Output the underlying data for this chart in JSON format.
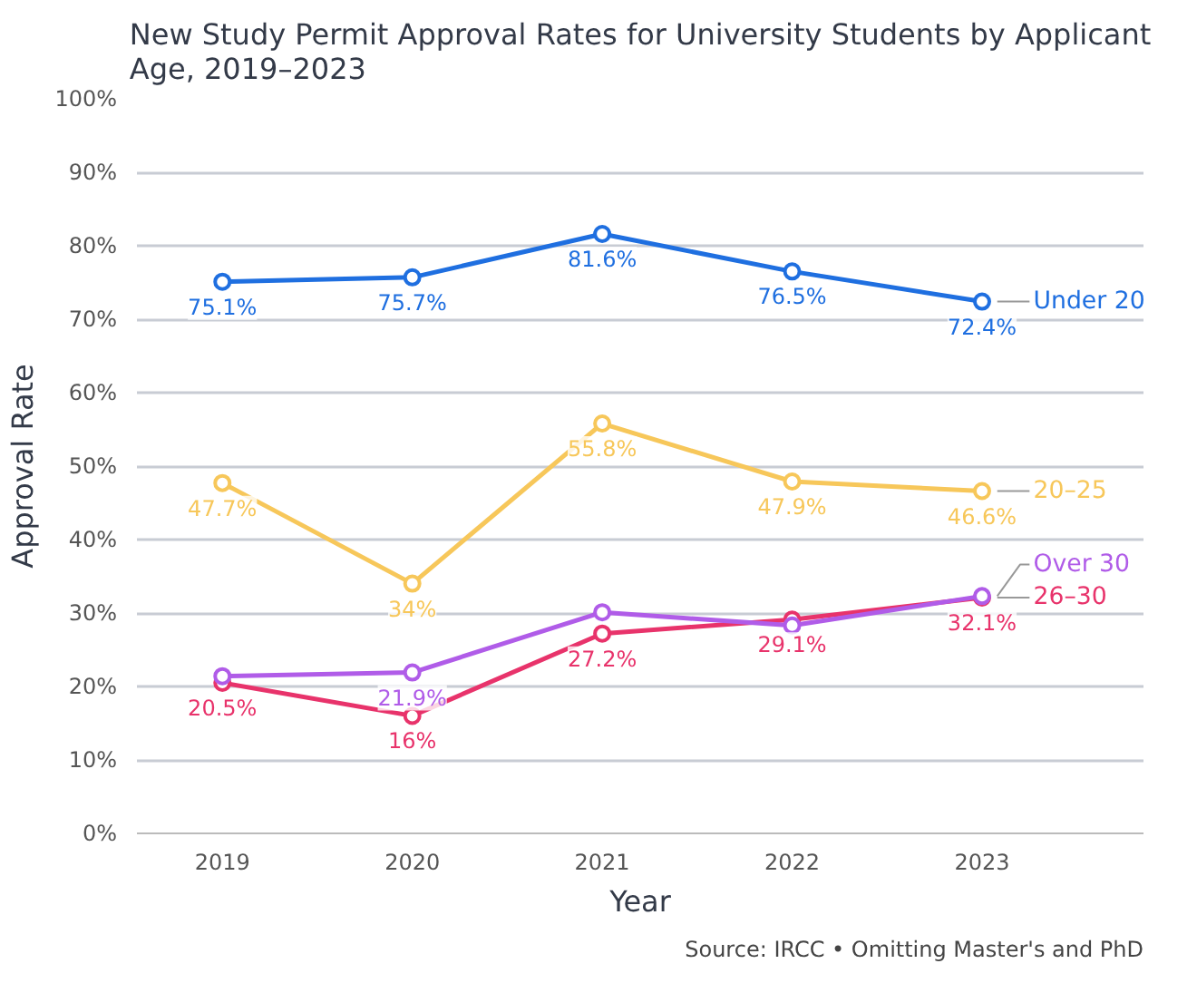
{
  "chart_data": {
    "type": "line",
    "title": "New Study Permit Approval Rates for University Students by Applicant\nAge, 2019–2023",
    "xlabel": "Year",
    "ylabel": "Approval Rate",
    "x": [
      2019,
      2020,
      2021,
      2022,
      2023
    ],
    "xlim": [
      2018.55,
      2023.85
    ],
    "xticks": [
      2019,
      2020,
      2021,
      2022,
      2023
    ],
    "ylim": [
      0,
      100
    ],
    "yticks": [
      {
        "value": 0,
        "label": "0%"
      },
      {
        "value": 10,
        "label": "10%"
      },
      {
        "value": 20,
        "label": "20%"
      },
      {
        "value": 30,
        "label": "30%"
      },
      {
        "value": 40,
        "label": "40%"
      },
      {
        "value": 50,
        "label": "50%"
      },
      {
        "value": 60,
        "label": "60%"
      },
      {
        "value": 70,
        "label": "70%"
      },
      {
        "value": 80,
        "label": "80%"
      },
      {
        "value": 90,
        "label": "90%"
      },
      {
        "value": 100,
        "label": "100%"
      }
    ],
    "grid": "y",
    "marker": "circle",
    "line_style": "solid",
    "series": [
      {
        "name": "Under 20",
        "color": "#1f6fe0",
        "values": [
          75.1,
          75.7,
          81.6,
          76.5,
          72.4
        ],
        "value_labels": [
          "75.1%",
          "75.7%",
          "81.6%",
          "76.5%",
          "72.4%"
        ]
      },
      {
        "name": "20–25",
        "color": "#f7c75a",
        "values": [
          47.7,
          34,
          55.8,
          47.9,
          46.6
        ],
        "value_labels": [
          "47.7%",
          "34%",
          "55.8%",
          "47.9%",
          "46.6%"
        ]
      },
      {
        "name": "Over 30",
        "color": "#b05ce8",
        "values": [
          21.4,
          21.9,
          30.1,
          28.3,
          32.3
        ],
        "value_labels": [
          null,
          "21.9%",
          null,
          null,
          null
        ]
      },
      {
        "name": "26–30",
        "color": "#e8336b",
        "values": [
          20.5,
          16,
          27.2,
          29.1,
          32.1
        ],
        "value_labels": [
          "20.5%",
          "16%",
          "27.2%",
          "29.1%",
          "32.1%"
        ]
      }
    ],
    "annotations": [
      "Source: IRCC • Omitting Master's and PhD"
    ]
  }
}
